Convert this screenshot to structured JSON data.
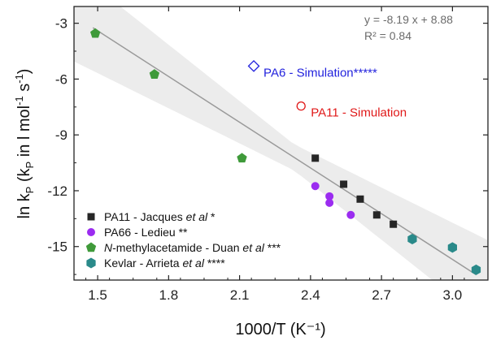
{
  "chart_data": {
    "type": "scatter",
    "xlabel": "1000/T (K⁻¹)",
    "ylabel": {
      "prefix": "ln k",
      "sub1": "P",
      "mid": " (k",
      "sub2": "P",
      "mid2": " in l mol",
      "sup1": "-1",
      "mid3": " s",
      "sup2": "-1",
      "suffix": ")"
    },
    "xlim": [
      1.4,
      3.15
    ],
    "ylim": [
      -16.8,
      -2.1
    ],
    "xticks": [
      1.5,
      1.8,
      2.1,
      2.4,
      2.7,
      3.0
    ],
    "xtick_labels": [
      "1.5",
      "1.8",
      "2.1",
      "2.4",
      "2.7",
      "3.0"
    ],
    "yticks": [
      -3,
      -6,
      -9,
      -12,
      -15
    ],
    "ytick_labels": [
      "-3",
      "-6",
      "-9",
      "-12",
      "-15"
    ],
    "grid": false,
    "legend_position": "bottom-left",
    "fit": {
      "slope": -8.19,
      "intercept": 8.88,
      "x_range": [
        1.48,
        3.1
      ],
      "equation_text": "y   = -8.19 x + 8.88",
      "r2_text": "R² = 0.84",
      "color": "#9a9a9a",
      "band_color": "#ececec"
    },
    "series": [
      {
        "name_parts": [
          {
            "text": "PA11 - Jacques ",
            "italic": false
          },
          {
            "text": "et al",
            "italic": true
          },
          {
            "text": " *",
            "italic": false
          }
        ],
        "marker": "square",
        "color": "#262626",
        "points": [
          [
            2.42,
            -10.25
          ],
          [
            2.54,
            -11.65
          ],
          [
            2.61,
            -12.45
          ],
          [
            2.68,
            -13.3
          ],
          [
            2.75,
            -13.8
          ]
        ]
      },
      {
        "name_parts": [
          {
            "text": "PA66 - Ledieu **",
            "italic": false
          }
        ],
        "marker": "circle",
        "color": "#9b2cf0",
        "points": [
          [
            2.42,
            -11.75
          ],
          [
            2.48,
            -12.3
          ],
          [
            2.48,
            -12.65
          ],
          [
            2.57,
            -13.3
          ]
        ]
      },
      {
        "name_parts": [
          {
            "text": "N",
            "italic": true
          },
          {
            "text": "-methylacetamide - Duan ",
            "italic": false
          },
          {
            "text": "et al",
            "italic": true
          },
          {
            "text": " ***",
            "italic": false
          }
        ],
        "marker": "pentagon",
        "color": "#3f9a3a",
        "points": [
          [
            1.49,
            -3.55
          ],
          [
            1.74,
            -5.75
          ],
          [
            2.11,
            -10.25
          ]
        ]
      },
      {
        "name_parts": [
          {
            "text": "Kevlar - Arrieta ",
            "italic": false
          },
          {
            "text": "et al",
            "italic": true
          },
          {
            "text": " ****",
            "italic": false
          }
        ],
        "marker": "hexagon",
        "color": "#2a8a8a",
        "points": [
          [
            2.83,
            -14.6
          ],
          [
            3.0,
            -15.05
          ],
          [
            3.1,
            -16.25
          ]
        ]
      }
    ],
    "annotations": [
      {
        "text": "PA6 - Simulation*****",
        "x": 2.16,
        "y": -5.3,
        "marker": "diamond-open",
        "color": "#2222dd"
      },
      {
        "text": "PA11 - Simulation",
        "x": 2.36,
        "y": -7.45,
        "marker": "circle-open",
        "color": "#e01818"
      }
    ]
  }
}
